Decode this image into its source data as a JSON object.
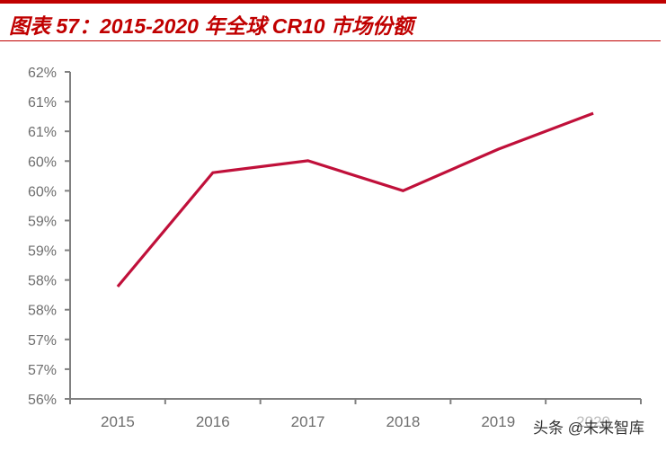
{
  "header": {
    "title": "图表 57：2015-2020 年全球 CR10 市场份额",
    "accent_color": "#c00000"
  },
  "chart_data": {
    "type": "line",
    "title": "图表 57：2015-2020 年全球 CR10 市场份额",
    "xlabel": "",
    "ylabel": "",
    "categories": [
      "2015",
      "2016",
      "2017",
      "2018",
      "2019",
      "2020"
    ],
    "series": [
      {
        "name": "全球 CR10 市场份额",
        "color": "#c0103a",
        "values": [
          58.06,
          60.15,
          60.37,
          59.82,
          60.58,
          61.24
        ]
      }
    ],
    "ylim": [
      56,
      62
    ],
    "y_tick_labels": [
      "62%",
      "61%",
      "61%",
      "60%",
      "60%",
      "59%",
      "59%",
      "58%",
      "58%",
      "57%",
      "57%",
      "56%"
    ],
    "grid": false,
    "legend": "none"
  },
  "watermark": {
    "text": "头条 @未来智库"
  }
}
